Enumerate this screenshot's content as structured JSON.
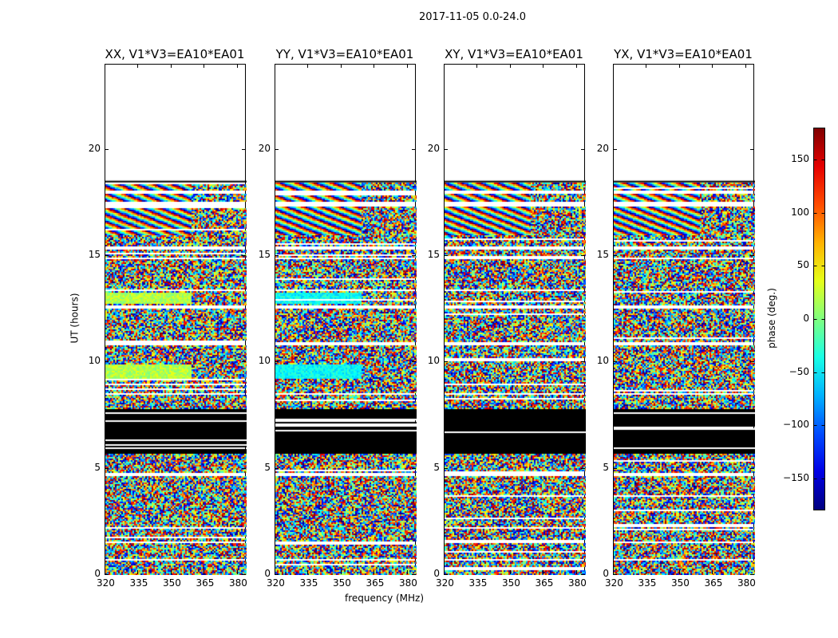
{
  "chart_data": {
    "type": "heatmap",
    "suptitle": "2017-11-05 0.0-24.0",
    "panels": [
      {
        "title": "XX, V1*V3=EA10*EA01",
        "smooth_color": 0.55
      },
      {
        "title": "YY, V1*V3=EA10*EA01",
        "smooth_color": 0.38
      },
      {
        "title": "XY, V1*V3=EA10*EA01",
        "smooth_color": null
      },
      {
        "title": "YX, V1*V3=EA10*EA01",
        "smooth_color": null
      }
    ],
    "xlabel": "frequency (MHz)",
    "ylabel": "UT (hours)",
    "xlim": [
      320,
      384
    ],
    "ylim": [
      0,
      24
    ],
    "xticks": [
      320,
      335,
      350,
      365,
      380
    ],
    "yticks": [
      0,
      5,
      10,
      15,
      20
    ],
    "data_time_range_hours": [
      0.05,
      18.5
    ],
    "flagged_range_hours": [
      5.75,
      7.85
    ],
    "gap_ranges_hours": [
      [
        0.75,
        0.82
      ],
      [
        1.55,
        1.62
      ],
      [
        4.72,
        4.85
      ],
      [
        8.5,
        8.6
      ],
      [
        10.85,
        11.0
      ],
      [
        12.6,
        12.7
      ],
      [
        14.9,
        15.0
      ],
      [
        15.3,
        15.5
      ],
      [
        17.4,
        17.6
      ],
      [
        18.0,
        18.08
      ]
    ],
    "fringe_range_hours": [
      16.0,
      18.5
    ],
    "smooth_ranges_hours": [
      [
        12.8,
        13.3
      ],
      [
        9.3,
        9.9
      ]
    ],
    "colorbar": {
      "label": "phase (deg.)",
      "range": [
        -180,
        180
      ],
      "ticks": [
        -150,
        -100,
        -50,
        0,
        50,
        100,
        150
      ],
      "colormap": "jet"
    }
  }
}
